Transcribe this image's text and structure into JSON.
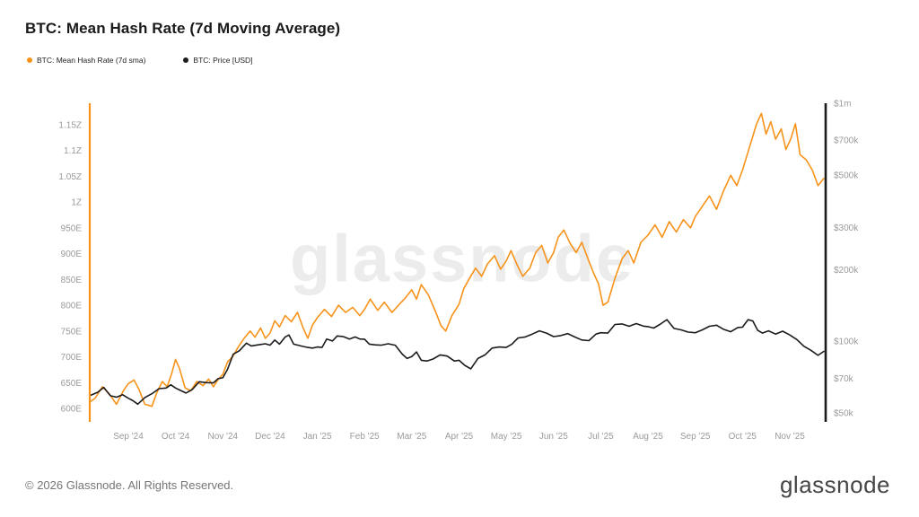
{
  "title": "BTC: Mean Hash Rate (7d Moving Average)",
  "footer": {
    "copyright": "© 2026 Glassnode. All Rights Reserved.",
    "logo_text": "glassnode"
  },
  "chart_data": {
    "type": "line",
    "title": "BTC: Mean Hash Rate (7d Moving Average)",
    "watermark": "glassnode",
    "legend_position": "top-left",
    "grid": false,
    "x_axis": {
      "tick_labels": [
        "Sep '24",
        "Oct '24",
        "Nov '24",
        "Dec '24",
        "Jan '25",
        "Feb '25",
        "Mar '25",
        "Apr '25",
        "May '25",
        "Jun '25",
        "Jul '25",
        "Aug '25",
        "Sep '25",
        "Oct '25",
        "Nov '25"
      ],
      "domain_months": [
        -0.82,
        14.76
      ]
    },
    "y_axis_left": {
      "scale": "linear",
      "color": "#F7931A",
      "range_eh": [
        600,
        1150
      ],
      "ticks": [
        {
          "value": 1150,
          "label": "1.15Z"
        },
        {
          "value": 1100,
          "label": "1.1Z"
        },
        {
          "value": 1050,
          "label": "1.05Z"
        },
        {
          "value": 1000,
          "label": "1Z"
        },
        {
          "value": 950,
          "label": "950E"
        },
        {
          "value": 900,
          "label": "900E"
        },
        {
          "value": 850,
          "label": "850E"
        },
        {
          "value": 800,
          "label": "800E"
        },
        {
          "value": 750,
          "label": "750E"
        },
        {
          "value": 700,
          "label": "700E"
        },
        {
          "value": 650,
          "label": "650E"
        },
        {
          "value": 600,
          "label": "600E"
        }
      ]
    },
    "y_axis_right": {
      "scale": "log",
      "color": "#1A1A1A",
      "range_usd": [
        50000,
        1000000
      ],
      "ticks": [
        {
          "value": 1000000,
          "label": "$1m"
        },
        {
          "value": 700000,
          "label": "$700k"
        },
        {
          "value": 500000,
          "label": "$500k"
        },
        {
          "value": 300000,
          "label": "$300k"
        },
        {
          "value": 200000,
          "label": "$200k"
        },
        {
          "value": 100000,
          "label": "$100k"
        },
        {
          "value": 70000,
          "label": "$70k"
        },
        {
          "value": 50000,
          "label": "$50k"
        }
      ]
    },
    "series": [
      {
        "name": "BTC: Mean Hash Rate (7d sma)",
        "color": "#F7931A",
        "axis": "left",
        "unit": "EH/s",
        "points": [
          [
            -0.82,
            612
          ],
          [
            -0.7,
            620
          ],
          [
            -0.55,
            642
          ],
          [
            -0.4,
            628
          ],
          [
            -0.25,
            608
          ],
          [
            -0.1,
            635
          ],
          [
            0,
            648
          ],
          [
            0.12,
            655
          ],
          [
            0.22,
            638
          ],
          [
            0.35,
            608
          ],
          [
            0.5,
            604
          ],
          [
            0.6,
            630
          ],
          [
            0.72,
            652
          ],
          [
            0.82,
            642
          ],
          [
            0.92,
            668
          ],
          [
            1.0,
            695
          ],
          [
            1.08,
            678
          ],
          [
            1.2,
            640
          ],
          [
            1.32,
            634
          ],
          [
            1.45,
            652
          ],
          [
            1.58,
            644
          ],
          [
            1.7,
            657
          ],
          [
            1.8,
            642
          ],
          [
            1.9,
            656
          ],
          [
            2.0,
            666
          ],
          [
            2.1,
            690
          ],
          [
            2.22,
            702
          ],
          [
            2.32,
            718
          ],
          [
            2.45,
            736
          ],
          [
            2.58,
            750
          ],
          [
            2.68,
            738
          ],
          [
            2.8,
            756
          ],
          [
            2.9,
            736
          ],
          [
            3.0,
            746
          ],
          [
            3.1,
            770
          ],
          [
            3.2,
            758
          ],
          [
            3.32,
            780
          ],
          [
            3.45,
            768
          ],
          [
            3.58,
            786
          ],
          [
            3.7,
            756
          ],
          [
            3.8,
            736
          ],
          [
            3.9,
            762
          ],
          [
            4.0,
            776
          ],
          [
            4.15,
            792
          ],
          [
            4.3,
            778
          ],
          [
            4.45,
            800
          ],
          [
            4.6,
            786
          ],
          [
            4.75,
            796
          ],
          [
            4.9,
            780
          ],
          [
            5.0,
            792
          ],
          [
            5.12,
            812
          ],
          [
            5.28,
            790
          ],
          [
            5.42,
            806
          ],
          [
            5.58,
            786
          ],
          [
            5.72,
            800
          ],
          [
            5.88,
            816
          ],
          [
            6.0,
            830
          ],
          [
            6.1,
            812
          ],
          [
            6.2,
            840
          ],
          [
            6.35,
            820
          ],
          [
            6.5,
            788
          ],
          [
            6.62,
            760
          ],
          [
            6.72,
            750
          ],
          [
            6.85,
            780
          ],
          [
            7.0,
            802
          ],
          [
            7.1,
            832
          ],
          [
            7.22,
            852
          ],
          [
            7.35,
            872
          ],
          [
            7.48,
            856
          ],
          [
            7.6,
            880
          ],
          [
            7.75,
            896
          ],
          [
            7.88,
            870
          ],
          [
            8.0,
            886
          ],
          [
            8.1,
            906
          ],
          [
            8.22,
            880
          ],
          [
            8.35,
            856
          ],
          [
            8.5,
            872
          ],
          [
            8.62,
            902
          ],
          [
            8.75,
            916
          ],
          [
            8.88,
            882
          ],
          [
            9.0,
            902
          ],
          [
            9.1,
            932
          ],
          [
            9.22,
            946
          ],
          [
            9.35,
            920
          ],
          [
            9.48,
            902
          ],
          [
            9.6,
            922
          ],
          [
            9.72,
            892
          ],
          [
            9.85,
            862
          ],
          [
            9.95,
            842
          ],
          [
            10.05,
            800
          ],
          [
            10.15,
            806
          ],
          [
            10.3,
            852
          ],
          [
            10.45,
            890
          ],
          [
            10.58,
            906
          ],
          [
            10.7,
            882
          ],
          [
            10.85,
            922
          ],
          [
            11.0,
            936
          ],
          [
            11.15,
            956
          ],
          [
            11.3,
            932
          ],
          [
            11.45,
            962
          ],
          [
            11.6,
            942
          ],
          [
            11.75,
            966
          ],
          [
            11.9,
            950
          ],
          [
            12.0,
            972
          ],
          [
            12.15,
            992
          ],
          [
            12.3,
            1012
          ],
          [
            12.45,
            986
          ],
          [
            12.6,
            1022
          ],
          [
            12.75,
            1052
          ],
          [
            12.88,
            1032
          ],
          [
            13.0,
            1062
          ],
          [
            13.1,
            1092
          ],
          [
            13.2,
            1122
          ],
          [
            13.3,
            1152
          ],
          [
            13.4,
            1172
          ],
          [
            13.5,
            1132
          ],
          [
            13.6,
            1156
          ],
          [
            13.7,
            1122
          ],
          [
            13.82,
            1142
          ],
          [
            13.92,
            1102
          ],
          [
            14.02,
            1122
          ],
          [
            14.12,
            1152
          ],
          [
            14.22,
            1092
          ],
          [
            14.35,
            1082
          ],
          [
            14.48,
            1062
          ],
          [
            14.6,
            1032
          ],
          [
            14.72,
            1046
          ]
        ]
      },
      {
        "name": "BTC: Price [USD]",
        "color": "#1C1C1C",
        "axis": "right",
        "unit": "USD",
        "points": [
          [
            -0.82,
            59000
          ],
          [
            -0.65,
            61000
          ],
          [
            -0.52,
            64000
          ],
          [
            -0.38,
            59000
          ],
          [
            -0.25,
            58200
          ],
          [
            -0.12,
            59600
          ],
          [
            0,
            57600
          ],
          [
            0.1,
            56200
          ],
          [
            0.2,
            54400
          ],
          [
            0.35,
            58000
          ],
          [
            0.5,
            60200
          ],
          [
            0.65,
            63200
          ],
          [
            0.8,
            63600
          ],
          [
            0.9,
            65600
          ],
          [
            1.0,
            63600
          ],
          [
            1.1,
            62200
          ],
          [
            1.22,
            60600
          ],
          [
            1.35,
            62600
          ],
          [
            1.5,
            67600
          ],
          [
            1.65,
            67000
          ],
          [
            1.8,
            66800
          ],
          [
            1.9,
            69600
          ],
          [
            2.0,
            70200
          ],
          [
            2.1,
            76200
          ],
          [
            2.22,
            88200
          ],
          [
            2.35,
            91200
          ],
          [
            2.5,
            98200
          ],
          [
            2.6,
            95600
          ],
          [
            2.75,
            96600
          ],
          [
            2.9,
            97600
          ],
          [
            3.0,
            96200
          ],
          [
            3.1,
            101200
          ],
          [
            3.2,
            97200
          ],
          [
            3.32,
            104200
          ],
          [
            3.4,
            106200
          ],
          [
            3.5,
            97200
          ],
          [
            3.65,
            95600
          ],
          [
            3.8,
            94200
          ],
          [
            3.9,
            93600
          ],
          [
            4.0,
            94600
          ],
          [
            4.1,
            94200
          ],
          [
            4.2,
            102200
          ],
          [
            4.32,
            100200
          ],
          [
            4.42,
            105200
          ],
          [
            4.55,
            104600
          ],
          [
            4.68,
            102200
          ],
          [
            4.8,
            104200
          ],
          [
            4.9,
            102200
          ],
          [
            5.0,
            102000
          ],
          [
            5.1,
            97200
          ],
          [
            5.22,
            96600
          ],
          [
            5.35,
            96200
          ],
          [
            5.5,
            97600
          ],
          [
            5.65,
            96200
          ],
          [
            5.8,
            88200
          ],
          [
            5.9,
            84600
          ],
          [
            6.0,
            86200
          ],
          [
            6.1,
            90200
          ],
          [
            6.2,
            83200
          ],
          [
            6.32,
            82600
          ],
          [
            6.45,
            84200
          ],
          [
            6.6,
            87600
          ],
          [
            6.75,
            86600
          ],
          [
            6.9,
            82600
          ],
          [
            7.0,
            83200
          ],
          [
            7.12,
            79200
          ],
          [
            7.25,
            76600
          ],
          [
            7.4,
            84600
          ],
          [
            7.55,
            87600
          ],
          [
            7.7,
            93600
          ],
          [
            7.85,
            94600
          ],
          [
            8.0,
            94200
          ],
          [
            8.12,
            97200
          ],
          [
            8.25,
            103200
          ],
          [
            8.4,
            104200
          ],
          [
            8.55,
            107200
          ],
          [
            8.7,
            110600
          ],
          [
            8.85,
            108200
          ],
          [
            9.0,
            104600
          ],
          [
            9.15,
            105600
          ],
          [
            9.3,
            107600
          ],
          [
            9.45,
            104200
          ],
          [
            9.6,
            101200
          ],
          [
            9.75,
            100600
          ],
          [
            9.9,
            107200
          ],
          [
            10.0,
            108600
          ],
          [
            10.15,
            108200
          ],
          [
            10.3,
            117600
          ],
          [
            10.45,
            118200
          ],
          [
            10.6,
            115600
          ],
          [
            10.75,
            118600
          ],
          [
            10.9,
            115800
          ],
          [
            11.0,
            115200
          ],
          [
            11.12,
            113600
          ],
          [
            11.25,
            117600
          ],
          [
            11.4,
            123200
          ],
          [
            11.55,
            113200
          ],
          [
            11.7,
            111600
          ],
          [
            11.85,
            109200
          ],
          [
            12.0,
            108600
          ],
          [
            12.15,
            111600
          ],
          [
            12.3,
            115600
          ],
          [
            12.45,
            116800
          ],
          [
            12.6,
            112200
          ],
          [
            12.75,
            109600
          ],
          [
            12.9,
            114200
          ],
          [
            13.0,
            114600
          ],
          [
            13.12,
            123200
          ],
          [
            13.22,
            121600
          ],
          [
            13.32,
            111200
          ],
          [
            13.42,
            108200
          ],
          [
            13.55,
            110600
          ],
          [
            13.7,
            107200
          ],
          [
            13.85,
            110200
          ],
          [
            14.0,
            106200
          ],
          [
            14.15,
            101600
          ],
          [
            14.3,
            95200
          ],
          [
            14.45,
            91600
          ],
          [
            14.6,
            87200
          ],
          [
            14.72,
            90600
          ]
        ]
      }
    ]
  }
}
